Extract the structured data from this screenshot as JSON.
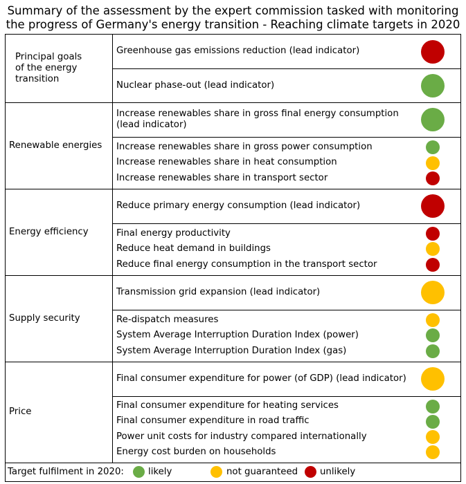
{
  "title": {
    "line1": "Summary of the assessment by the expert commission tasked with monitoring",
    "line2": "the progress of Germany's energy transition - Reaching climate targets in 2020"
  },
  "colors": {
    "likely": "#6aac46",
    "not_guaranteed": "#ffc000",
    "unlikely": "#c00000"
  },
  "chart_data": {
    "type": "table",
    "categories": [
      {
        "name": "Principal goals of the energy transition",
        "lead": [
          {
            "label": "Greenhouse gas emissions reduction (lead indicator)",
            "status": "unlikely"
          },
          {
            "label": "Nuclear phase-out (lead indicator)",
            "status": "likely"
          }
        ],
        "others": []
      },
      {
        "name": "Renewable energies",
        "lead": [
          {
            "label": "Increase renewables share in gross final energy consumption (lead indicator)",
            "status": "likely"
          }
        ],
        "others": [
          {
            "label": "Increase renewables share in gross power consumption",
            "status": "likely"
          },
          {
            "label": "Increase renewables share in heat consumption",
            "status": "not_guaranteed"
          },
          {
            "label": "Increase renewables share in transport sector",
            "status": "unlikely"
          }
        ]
      },
      {
        "name": "Energy efficiency",
        "lead": [
          {
            "label": "Reduce primary energy consumption (lead indicator)",
            "status": "unlikely"
          }
        ],
        "others": [
          {
            "label": "Final energy productivity",
            "status": "unlikely"
          },
          {
            "label": "Reduce heat demand in buildings",
            "status": "not_guaranteed"
          },
          {
            "label": "Reduce final energy consumption in the transport sector",
            "status": "unlikely"
          }
        ]
      },
      {
        "name": "Supply security",
        "lead": [
          {
            "label": "Transmission grid expansion (lead indicator)",
            "status": "not_guaranteed"
          }
        ],
        "others": [
          {
            "label": "Re-dispatch measures",
            "status": "not_guaranteed"
          },
          {
            "label": "System Average Interruption Duration Index (power)",
            "status": "likely"
          },
          {
            "label": "System Average Interruption Duration Index (gas)",
            "status": "likely"
          }
        ]
      },
      {
        "name": "Price",
        "lead": [
          {
            "label": "Final consumer expenditure for power (of GDP) (lead indicator)",
            "status": "not_guaranteed"
          }
        ],
        "others": [
          {
            "label": "Final consumer expenditure for heating services",
            "status": "likely"
          },
          {
            "label": "Final consumer expenditure in road traffic",
            "status": "likely"
          },
          {
            "label": "Power unit costs for industry compared internationally",
            "status": "not_guaranteed"
          },
          {
            "label": "Energy cost burden on households",
            "status": "not_guaranteed"
          }
        ]
      }
    ]
  },
  "legend": {
    "prefix": "Target fulfilment in 2020:",
    "likely": "likely",
    "not_guaranteed": "not guaranteed",
    "unlikely": "unlikely"
  }
}
